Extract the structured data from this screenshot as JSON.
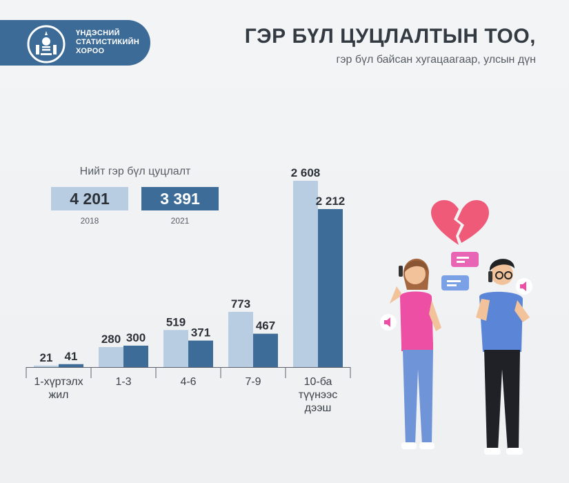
{
  "header": {
    "logo_lines": [
      "ҮНДЭСНИЙ",
      "СТАТИСТИКИЙН",
      "ХОРОО"
    ],
    "title": "ГЭР БҮЛ ЦУЦЛАЛТЫН ТОО,",
    "subtitle": "гэр бүл байсан хугацаагаар, улсын дүн"
  },
  "totals": {
    "label": "Нийт гэр бүл цуцлалт",
    "items": [
      {
        "year": "2018",
        "value": "4 201"
      },
      {
        "year": "2021",
        "value": "3 391"
      }
    ]
  },
  "colors": {
    "series_2018": "#b8cde1",
    "series_2021": "#3c6c97",
    "heart": "#ef5a78",
    "shirt_woman": "#ec4fa3",
    "shirt_man": "#5b85d6"
  },
  "chart_data": {
    "type": "bar",
    "categories": [
      [
        "1-хүртэлх",
        "жил"
      ],
      [
        "1-3"
      ],
      [
        "4-6"
      ],
      [
        "7-9"
      ],
      [
        "10-ба",
        "түүнээс",
        "дээш"
      ]
    ],
    "series": [
      {
        "name": "2018",
        "values": [
          21,
          280,
          519,
          773,
          2608
        ],
        "labels": [
          "21",
          "280",
          "519",
          "773",
          "2 608"
        ]
      },
      {
        "name": "2021",
        "values": [
          41,
          300,
          371,
          467,
          2212
        ],
        "labels": [
          "41",
          "300",
          "371",
          "467",
          "2 212"
        ]
      }
    ],
    "ylim": [
      0,
      2608
    ],
    "grid": false,
    "legend": "none"
  }
}
